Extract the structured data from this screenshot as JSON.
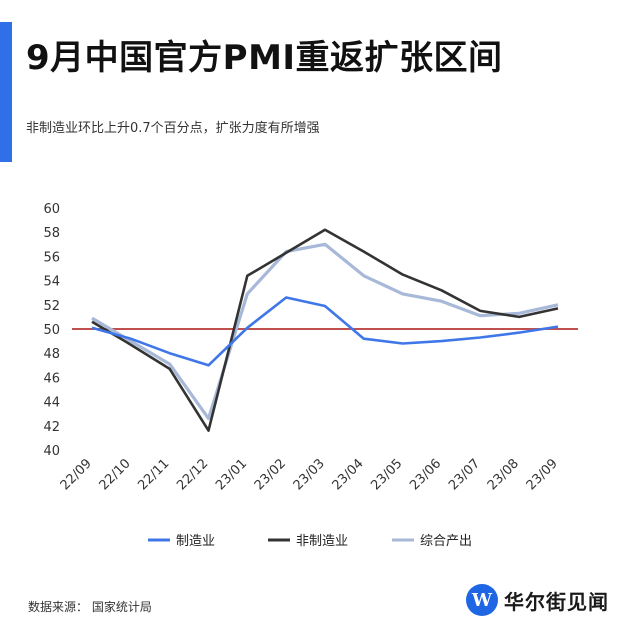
{
  "header": {
    "title": "9月中国官方PMI重返扩张区间",
    "subtitle": "非制造业环比上升0.7个百分点，扩张力度有所增强"
  },
  "footer": {
    "source": "数据来源：  国家统计局",
    "brand_name": "华尔街见闻",
    "brand_logo_letter": "W"
  },
  "colors": {
    "accent": "#2f6fe8",
    "manufacturing": "#3f77e8",
    "non_manufacturing": "#333333",
    "composite": "#a7b8d8",
    "reference_line": "#c0504d"
  },
  "chart_data": {
    "type": "line",
    "title": "",
    "xlabel": "",
    "ylabel": "",
    "categories": [
      "22/09",
      "22/10",
      "22/11",
      "22/12",
      "23/01",
      "23/02",
      "23/03",
      "23/04",
      "23/05",
      "23/06",
      "23/07",
      "23/08",
      "23/09"
    ],
    "ylim": [
      40,
      60
    ],
    "yticks": [
      40,
      42,
      44,
      46,
      48,
      50,
      52,
      54,
      56,
      58,
      60
    ],
    "reference_line": 50,
    "grid": false,
    "legend_position": "bottom",
    "series": [
      {
        "name": "制造业",
        "values": [
          50.1,
          49.2,
          48.0,
          47.0,
          50.1,
          52.6,
          51.9,
          49.2,
          48.8,
          49.0,
          49.3,
          49.7,
          50.2
        ]
      },
      {
        "name": "非制造业",
        "values": [
          50.6,
          48.7,
          46.7,
          41.6,
          54.4,
          56.3,
          58.2,
          56.4,
          54.5,
          53.2,
          51.5,
          51.0,
          51.7
        ]
      },
      {
        "name": "综合产出",
        "values": [
          50.9,
          49.0,
          47.1,
          42.6,
          52.9,
          56.4,
          57.0,
          54.4,
          52.9,
          52.3,
          51.1,
          51.3,
          52.0
        ]
      }
    ]
  }
}
